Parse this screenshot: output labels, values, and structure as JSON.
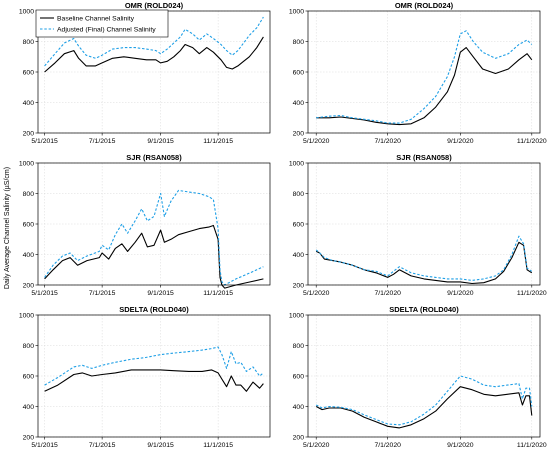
{
  "figure": {
    "ylabel": "Daily Average Channel Salinity (µS/cm)",
    "legend": {
      "placement": "top-left of first panel",
      "entries": [
        {
          "label": "Baseline Channel Salinity",
          "style": "solid",
          "color": "#000000"
        },
        {
          "label": "Adjusted (Final) Channel Salinity",
          "style": "dashed",
          "color": "#1e9fe6"
        }
      ]
    }
  },
  "chart_data": [
    {
      "type": "line",
      "title": "OMR (ROLD024)",
      "period": "2015",
      "x_ticks": [
        "5/1/2015",
        "7/1/2015",
        "9/1/2015",
        "11/1/2015"
      ],
      "xlim": [
        "2015-04-24",
        "2015-12-26"
      ],
      "ylim": [
        200,
        1000
      ],
      "y_ticks": [
        200,
        400,
        600,
        800,
        1000
      ],
      "grid": true,
      "series": [
        {
          "name": "Baseline Channel Salinity",
          "color": "#000000",
          "dash": "solid",
          "x": [
            "2015-05-01",
            "2015-05-12",
            "2015-05-22",
            "2015-06-01",
            "2015-06-06",
            "2015-06-14",
            "2015-06-24",
            "2015-07-01",
            "2015-07-12",
            "2015-07-24",
            "2015-08-05",
            "2015-08-17",
            "2015-08-27",
            "2015-09-01",
            "2015-09-08",
            "2015-09-15",
            "2015-09-22",
            "2015-09-27",
            "2015-10-05",
            "2015-10-12",
            "2015-10-20",
            "2015-10-27",
            "2015-11-04",
            "2015-11-10",
            "2015-11-16",
            "2015-11-22",
            "2015-11-28",
            "2015-12-04",
            "2015-12-12",
            "2015-12-19"
          ],
          "y": [
            600,
            660,
            720,
            740,
            690,
            640,
            640,
            660,
            690,
            700,
            690,
            680,
            680,
            660,
            670,
            700,
            740,
            780,
            760,
            720,
            760,
            730,
            680,
            630,
            620,
            640,
            670,
            700,
            760,
            830
          ]
        },
        {
          "name": "Adjusted (Final) Channel Salinity",
          "color": "#1e9fe6",
          "dash": "dashed",
          "x": [
            "2015-05-01",
            "2015-05-12",
            "2015-05-22",
            "2015-06-01",
            "2015-06-06",
            "2015-06-14",
            "2015-06-24",
            "2015-07-01",
            "2015-07-12",
            "2015-07-24",
            "2015-08-05",
            "2015-08-17",
            "2015-08-27",
            "2015-09-01",
            "2015-09-08",
            "2015-09-15",
            "2015-09-22",
            "2015-09-27",
            "2015-10-05",
            "2015-10-12",
            "2015-10-20",
            "2015-10-27",
            "2015-11-04",
            "2015-11-10",
            "2015-11-16",
            "2015-11-22",
            "2015-11-28",
            "2015-12-04",
            "2015-12-12",
            "2015-12-19"
          ],
          "y": [
            640,
            720,
            790,
            820,
            770,
            710,
            690,
            710,
            750,
            760,
            760,
            750,
            740,
            720,
            750,
            790,
            830,
            880,
            850,
            810,
            850,
            820,
            780,
            740,
            710,
            740,
            790,
            840,
            890,
            960
          ]
        }
      ]
    },
    {
      "type": "line",
      "title": "OMR (ROLD024)",
      "period": "2020",
      "x_ticks": [
        "5/1/2020",
        "7/1/2020",
        "9/1/2020",
        "11/1/2020"
      ],
      "xlim": [
        "2020-04-24",
        "2020-11-08"
      ],
      "ylim": [
        200,
        1000
      ],
      "y_ticks": [
        200,
        400,
        600,
        800,
        1000
      ],
      "grid": true,
      "series": [
        {
          "name": "Baseline Channel Salinity",
          "color": "#000000",
          "dash": "solid",
          "x": [
            "2020-05-01",
            "2020-05-12",
            "2020-05-22",
            "2020-06-01",
            "2020-06-11",
            "2020-06-21",
            "2020-07-01",
            "2020-07-11",
            "2020-07-21",
            "2020-08-01",
            "2020-08-11",
            "2020-08-21",
            "2020-08-27",
            "2020-09-01",
            "2020-09-06",
            "2020-09-12",
            "2020-09-20",
            "2020-10-01",
            "2020-10-12",
            "2020-10-21",
            "2020-10-28",
            "2020-11-01"
          ],
          "y": [
            300,
            300,
            305,
            295,
            285,
            270,
            260,
            255,
            260,
            300,
            370,
            470,
            580,
            730,
            760,
            700,
            620,
            590,
            620,
            680,
            720,
            680
          ]
        },
        {
          "name": "Adjusted (Final) Channel Salinity",
          "color": "#1e9fe6",
          "dash": "dashed",
          "x": [
            "2020-05-01",
            "2020-05-12",
            "2020-05-22",
            "2020-06-01",
            "2020-06-11",
            "2020-06-21",
            "2020-07-01",
            "2020-07-11",
            "2020-07-21",
            "2020-08-01",
            "2020-08-11",
            "2020-08-21",
            "2020-08-27",
            "2020-09-01",
            "2020-09-06",
            "2020-09-12",
            "2020-09-20",
            "2020-10-01",
            "2020-10-12",
            "2020-10-21",
            "2020-10-28",
            "2020-11-01"
          ],
          "y": [
            300,
            310,
            315,
            300,
            290,
            280,
            265,
            265,
            290,
            360,
            440,
            570,
            700,
            850,
            870,
            800,
            730,
            690,
            720,
            780,
            810,
            780
          ]
        }
      ]
    },
    {
      "type": "line",
      "title": "SJR (RSAN058)",
      "period": "2015",
      "x_ticks": [
        "5/1/2015",
        "7/1/2015",
        "9/1/2015",
        "11/1/2015"
      ],
      "xlim": [
        "2015-04-24",
        "2015-12-26"
      ],
      "ylim": [
        200,
        1000
      ],
      "y_ticks": [
        200,
        400,
        600,
        800,
        1000
      ],
      "grid": true,
      "series": [
        {
          "name": "Baseline Channel Salinity",
          "color": "#000000",
          "dash": "solid",
          "x": [
            "2015-05-01",
            "2015-05-10",
            "2015-05-20",
            "2015-05-28",
            "2015-06-05",
            "2015-06-15",
            "2015-06-28",
            "2015-07-01",
            "2015-07-08",
            "2015-07-15",
            "2015-07-22",
            "2015-07-28",
            "2015-08-05",
            "2015-08-12",
            "2015-08-18",
            "2015-08-25",
            "2015-09-01",
            "2015-09-05",
            "2015-09-12",
            "2015-09-20",
            "2015-10-01",
            "2015-10-12",
            "2015-10-22",
            "2015-10-27",
            "2015-11-01",
            "2015-11-03",
            "2015-11-05",
            "2015-11-08",
            "2015-11-20",
            "2015-12-05",
            "2015-12-19"
          ],
          "y": [
            240,
            300,
            360,
            380,
            330,
            360,
            380,
            410,
            370,
            440,
            470,
            420,
            480,
            540,
            450,
            460,
            560,
            480,
            500,
            530,
            550,
            570,
            580,
            590,
            500,
            250,
            200,
            180,
            200,
            220,
            240
          ]
        },
        {
          "name": "Adjusted (Final) Channel Salinity",
          "color": "#1e9fe6",
          "dash": "dashed",
          "x": [
            "2015-05-01",
            "2015-05-10",
            "2015-05-20",
            "2015-05-28",
            "2015-06-05",
            "2015-06-15",
            "2015-06-28",
            "2015-07-01",
            "2015-07-08",
            "2015-07-15",
            "2015-07-22",
            "2015-07-28",
            "2015-08-05",
            "2015-08-12",
            "2015-08-18",
            "2015-08-25",
            "2015-09-01",
            "2015-09-05",
            "2015-09-12",
            "2015-09-20",
            "2015-10-01",
            "2015-10-12",
            "2015-10-22",
            "2015-10-27",
            "2015-11-01",
            "2015-11-03",
            "2015-11-05",
            "2015-11-08",
            "2015-11-20",
            "2015-12-05",
            "2015-12-19"
          ],
          "y": [
            250,
            330,
            390,
            410,
            360,
            390,
            420,
            460,
            430,
            530,
            600,
            540,
            620,
            700,
            620,
            650,
            800,
            650,
            750,
            820,
            810,
            800,
            780,
            760,
            570,
            300,
            220,
            200,
            240,
            280,
            320
          ]
        }
      ]
    },
    {
      "type": "line",
      "title": "SJR (RSAN058)",
      "period": "2020",
      "x_ticks": [
        "5/1/2020",
        "7/1/2020",
        "9/1/2020",
        "11/1/2020"
      ],
      "xlim": [
        "2020-04-24",
        "2020-11-08"
      ],
      "ylim": [
        200,
        1000
      ],
      "y_ticks": [
        200,
        400,
        600,
        800,
        1000
      ],
      "grid": true,
      "series": [
        {
          "name": "Baseline Channel Salinity",
          "color": "#000000",
          "dash": "solid",
          "x": [
            "2020-05-01",
            "2020-05-04",
            "2020-05-08",
            "2020-05-15",
            "2020-05-22",
            "2020-06-01",
            "2020-06-11",
            "2020-06-21",
            "2020-07-01",
            "2020-07-06",
            "2020-07-11",
            "2020-07-21",
            "2020-08-01",
            "2020-08-11",
            "2020-08-21",
            "2020-09-01",
            "2020-09-11",
            "2020-09-21",
            "2020-10-01",
            "2020-10-08",
            "2020-10-15",
            "2020-10-21",
            "2020-10-25",
            "2020-10-28",
            "2020-11-01"
          ],
          "y": [
            420,
            410,
            370,
            360,
            350,
            330,
            300,
            280,
            250,
            270,
            300,
            260,
            240,
            230,
            220,
            220,
            210,
            215,
            240,
            290,
            380,
            480,
            460,
            300,
            280
          ]
        },
        {
          "name": "Adjusted (Final) Channel Salinity",
          "color": "#1e9fe6",
          "dash": "dashed",
          "x": [
            "2020-05-01",
            "2020-05-04",
            "2020-05-08",
            "2020-05-15",
            "2020-05-22",
            "2020-06-01",
            "2020-06-11",
            "2020-06-21",
            "2020-07-01",
            "2020-07-06",
            "2020-07-11",
            "2020-07-21",
            "2020-08-01",
            "2020-08-11",
            "2020-08-21",
            "2020-09-01",
            "2020-09-11",
            "2020-09-21",
            "2020-10-01",
            "2020-10-08",
            "2020-10-15",
            "2020-10-21",
            "2020-10-25",
            "2020-10-28",
            "2020-11-01"
          ],
          "y": [
            430,
            410,
            380,
            360,
            350,
            330,
            300,
            290,
            260,
            290,
            320,
            280,
            260,
            250,
            240,
            240,
            230,
            240,
            260,
            300,
            400,
            520,
            470,
            310,
            290
          ]
        }
      ]
    },
    {
      "type": "line",
      "title": "SDELTA (ROLD040)",
      "period": "2015",
      "x_ticks": [
        "5/1/2015",
        "7/1/2015",
        "9/1/2015",
        "11/1/2015"
      ],
      "xlim": [
        "2015-04-24",
        "2015-12-26"
      ],
      "ylim": [
        200,
        1000
      ],
      "y_ticks": [
        200,
        400,
        600,
        800,
        1000
      ],
      "grid": true,
      "series": [
        {
          "name": "Baseline Channel Salinity",
          "color": "#000000",
          "dash": "solid",
          "x": [
            "2015-05-01",
            "2015-05-15",
            "2015-06-01",
            "2015-06-10",
            "2015-06-20",
            "2015-07-01",
            "2015-07-15",
            "2015-08-01",
            "2015-08-15",
            "2015-09-01",
            "2015-09-15",
            "2015-10-01",
            "2015-10-15",
            "2015-10-25",
            "2015-11-01",
            "2015-11-05",
            "2015-11-10",
            "2015-11-15",
            "2015-11-20",
            "2015-11-25",
            "2015-12-01",
            "2015-12-08",
            "2015-12-15",
            "2015-12-19"
          ],
          "y": [
            500,
            540,
            610,
            620,
            600,
            610,
            620,
            640,
            640,
            640,
            635,
            630,
            630,
            640,
            620,
            580,
            530,
            600,
            540,
            540,
            500,
            560,
            520,
            550
          ]
        },
        {
          "name": "Adjusted (Final) Channel Salinity",
          "color": "#1e9fe6",
          "dash": "dashed",
          "x": [
            "2015-05-01",
            "2015-05-15",
            "2015-06-01",
            "2015-06-10",
            "2015-06-20",
            "2015-07-01",
            "2015-07-15",
            "2015-08-01",
            "2015-08-15",
            "2015-09-01",
            "2015-09-15",
            "2015-10-01",
            "2015-10-15",
            "2015-10-25",
            "2015-11-01",
            "2015-11-05",
            "2015-11-10",
            "2015-11-15",
            "2015-11-20",
            "2015-11-25",
            "2015-12-01",
            "2015-12-08",
            "2015-12-15",
            "2015-12-19"
          ],
          "y": [
            540,
            590,
            660,
            670,
            650,
            670,
            690,
            710,
            720,
            740,
            750,
            760,
            770,
            780,
            790,
            740,
            650,
            760,
            680,
            690,
            630,
            660,
            600,
            620
          ]
        }
      ]
    },
    {
      "type": "line",
      "title": "SDELTA (ROLD040)",
      "period": "2020",
      "x_ticks": [
        "5/1/2020",
        "7/1/2020",
        "9/1/2020",
        "11/1/2020"
      ],
      "xlim": [
        "2020-04-24",
        "2020-11-08"
      ],
      "ylim": [
        200,
        1000
      ],
      "y_ticks": [
        200,
        400,
        600,
        800,
        1000
      ],
      "grid": true,
      "series": [
        {
          "name": "Baseline Channel Salinity",
          "color": "#000000",
          "dash": "solid",
          "x": [
            "2020-05-01",
            "2020-05-06",
            "2020-05-12",
            "2020-05-22",
            "2020-06-01",
            "2020-06-11",
            "2020-06-21",
            "2020-07-01",
            "2020-07-11",
            "2020-07-21",
            "2020-08-01",
            "2020-08-11",
            "2020-08-21",
            "2020-09-01",
            "2020-09-11",
            "2020-09-21",
            "2020-10-01",
            "2020-10-11",
            "2020-10-21",
            "2020-10-24",
            "2020-10-27",
            "2020-10-30",
            "2020-11-01"
          ],
          "y": [
            400,
            380,
            390,
            390,
            370,
            330,
            300,
            270,
            260,
            280,
            320,
            370,
            450,
            530,
            510,
            480,
            470,
            480,
            490,
            410,
            470,
            470,
            340
          ]
        },
        {
          "name": "Adjusted (Final) Channel Salinity",
          "color": "#1e9fe6",
          "dash": "dashed",
          "x": [
            "2020-05-01",
            "2020-05-06",
            "2020-05-12",
            "2020-05-22",
            "2020-06-01",
            "2020-06-11",
            "2020-06-21",
            "2020-07-01",
            "2020-07-11",
            "2020-07-21",
            "2020-08-01",
            "2020-08-11",
            "2020-08-21",
            "2020-09-01",
            "2020-09-11",
            "2020-09-21",
            "2020-10-01",
            "2020-10-11",
            "2020-10-21",
            "2020-10-24",
            "2020-10-27",
            "2020-10-30",
            "2020-11-01"
          ],
          "y": [
            410,
            390,
            400,
            395,
            380,
            345,
            315,
            285,
            280,
            300,
            350,
            410,
            500,
            600,
            580,
            540,
            530,
            540,
            550,
            450,
            520,
            520,
            400
          ]
        }
      ]
    }
  ]
}
